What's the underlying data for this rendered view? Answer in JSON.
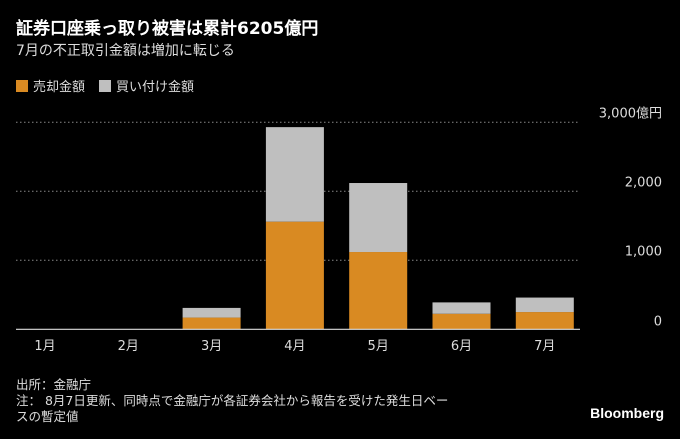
{
  "title": "証券口座乗っ取り被害は累計6205億円",
  "subtitle": "7月の不正取引金額は増加に転じる",
  "source": "出所：金融庁",
  "note_line1": "注： 8月7日更新、同時点で金融庁が各証券会社から報告を受けた発生日ベー",
  "note_line2": "スの暫定値",
  "logo": "Bloomberg",
  "chart_data": {
    "type": "bar",
    "stacked": true,
    "categories": [
      "1月",
      "2月",
      "3月",
      "4月",
      "5月",
      "6月",
      "7月"
    ],
    "series": [
      {
        "name": "売却金額",
        "color": "#d98a22",
        "values": [
          0,
          0,
          170,
          1560,
          1120,
          225,
          250
        ]
      },
      {
        "name": "買い付け金額",
        "color": "#bfbfbf",
        "values": [
          0,
          0,
          140,
          1370,
          1000,
          165,
          210
        ]
      }
    ],
    "ylim": [
      0,
      3000
    ],
    "yticks": [
      0,
      1000,
      2000,
      3000
    ],
    "ytick_labels": [
      "0",
      "1,000",
      "2,000",
      "3,000億円"
    ],
    "grid": true,
    "legend": "top-left"
  }
}
